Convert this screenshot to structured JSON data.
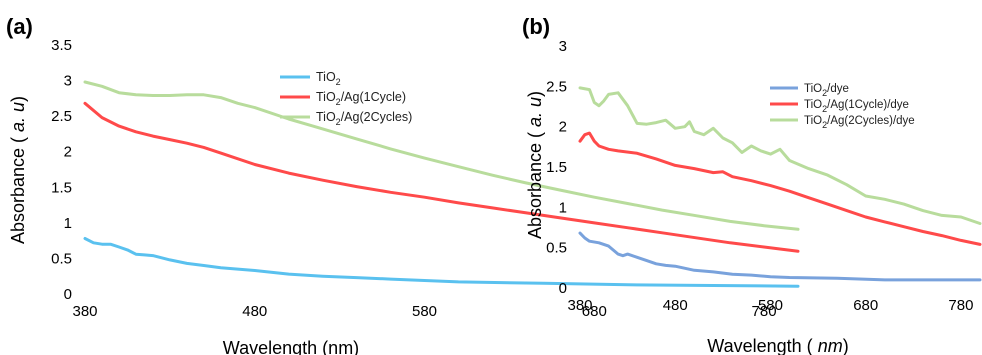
{
  "colors": {
    "blue": "#5ac1ef",
    "red": "#ff4a4a",
    "green": "#b8dc9c"
  },
  "chart_data": [
    {
      "panel_label": "(a)",
      "type": "line",
      "xlabel": "Wavelength (nm)",
      "ylabel": "Absorbance (a. u)",
      "xlim": [
        380,
        800
      ],
      "ylim": [
        0,
        3.5
      ],
      "xticks": [
        "380",
        "480",
        "580",
        "680",
        "780"
      ],
      "yticks": [
        "0",
        "0.5",
        "1",
        "1.5",
        "2",
        "2.5",
        "3",
        "3.5"
      ],
      "legend": {
        "position": "top-right"
      },
      "series": [
        {
          "name": "TiO2",
          "name_base": "TiO",
          "name_sub": "2",
          "name_rest": "",
          "color": "#5ac1ef",
          "x": [
            380,
            385,
            390,
            395,
            400,
            405,
            410,
            415,
            420,
            430,
            440,
            450,
            460,
            470,
            480,
            500,
            520,
            540,
            560,
            580,
            600,
            650,
            700,
            750,
            800
          ],
          "y": [
            0.78,
            0.72,
            0.7,
            0.7,
            0.66,
            0.62,
            0.56,
            0.55,
            0.54,
            0.48,
            0.43,
            0.4,
            0.37,
            0.35,
            0.33,
            0.28,
            0.25,
            0.23,
            0.21,
            0.19,
            0.17,
            0.15,
            0.13,
            0.12,
            0.11
          ]
        },
        {
          "name": "TiO2/Ag(1Cycle)",
          "name_base": "TiO",
          "name_sub": "2",
          "name_rest": "/Ag(1Cycle)",
          "color": "#ff4a4a",
          "x": [
            380,
            390,
            400,
            410,
            420,
            430,
            440,
            450,
            460,
            480,
            500,
            520,
            540,
            560,
            580,
            600,
            620,
            640,
            660,
            680,
            700,
            720,
            740,
            760,
            780,
            800
          ],
          "y": [
            2.68,
            2.48,
            2.36,
            2.28,
            2.22,
            2.17,
            2.12,
            2.06,
            1.98,
            1.82,
            1.7,
            1.6,
            1.51,
            1.43,
            1.36,
            1.28,
            1.21,
            1.14,
            1.07,
            1.0,
            0.93,
            0.86,
            0.79,
            0.72,
            0.66,
            0.6
          ]
        },
        {
          "name": "TiO2/Ag(2Cycles)",
          "name_base": "TiO",
          "name_sub": "2",
          "name_rest": "/Ag(2Cycles)",
          "color": "#b8dc9c",
          "x": [
            380,
            390,
            400,
            410,
            420,
            430,
            440,
            450,
            460,
            470,
            480,
            500,
            520,
            540,
            560,
            580,
            600,
            620,
            640,
            660,
            680,
            700,
            720,
            740,
            760,
            780,
            800
          ],
          "y": [
            2.98,
            2.92,
            2.83,
            2.8,
            2.79,
            2.79,
            2.8,
            2.8,
            2.76,
            2.68,
            2.62,
            2.46,
            2.32,
            2.18,
            2.04,
            1.91,
            1.79,
            1.67,
            1.56,
            1.46,
            1.36,
            1.27,
            1.18,
            1.1,
            1.02,
            0.96,
            0.91
          ]
        }
      ]
    },
    {
      "panel_label": "(b)",
      "type": "line",
      "xlabel": "Wavelength (nm)",
      "ylabel": "Absorbance (a. u)",
      "xlim": [
        380,
        800
      ],
      "ylim": [
        0,
        3
      ],
      "xticks": [
        "380",
        "480",
        "580",
        "680",
        "780"
      ],
      "yticks": [
        "0",
        "0.5",
        "1",
        "1.5",
        "2",
        "2.5",
        "3"
      ],
      "legend": {
        "position": "top-right"
      },
      "series": [
        {
          "name": "TiO2/dye",
          "name_base": "TiO",
          "name_sub": "2",
          "name_rest": "/dye",
          "color": "#79a2dc",
          "x": [
            380,
            385,
            390,
            400,
            410,
            420,
            425,
            430,
            440,
            450,
            460,
            470,
            480,
            500,
            520,
            540,
            560,
            580,
            600,
            650,
            700,
            750,
            800
          ],
          "y": [
            0.68,
            0.62,
            0.58,
            0.56,
            0.52,
            0.42,
            0.4,
            0.42,
            0.38,
            0.34,
            0.3,
            0.28,
            0.27,
            0.22,
            0.2,
            0.17,
            0.16,
            0.14,
            0.13,
            0.12,
            0.1,
            0.1,
            0.1
          ]
        },
        {
          "name": "TiO2/Ag(1Cycle)/dye",
          "name_base": "TiO",
          "name_sub": "2",
          "name_rest": "/Ag(1Cycle)/dye",
          "color": "#ff4a4a",
          "x": [
            380,
            385,
            390,
            395,
            400,
            410,
            420,
            440,
            460,
            480,
            500,
            520,
            530,
            540,
            560,
            580,
            600,
            620,
            640,
            660,
            680,
            700,
            720,
            740,
            760,
            780,
            800
          ],
          "y": [
            1.82,
            1.9,
            1.92,
            1.82,
            1.76,
            1.72,
            1.7,
            1.67,
            1.6,
            1.52,
            1.48,
            1.43,
            1.44,
            1.38,
            1.33,
            1.27,
            1.2,
            1.12,
            1.04,
            0.96,
            0.88,
            0.82,
            0.76,
            0.7,
            0.65,
            0.59,
            0.54
          ]
        },
        {
          "name": "TiO2/Ag(2Cycles)/dye",
          "name_base": "TiO",
          "name_sub": "2",
          "name_rest": "/Ag(2Cycles)/dye",
          "color": "#b8dc9c",
          "x": [
            380,
            390,
            395,
            400,
            405,
            410,
            420,
            430,
            440,
            450,
            460,
            470,
            480,
            490,
            495,
            500,
            510,
            520,
            530,
            540,
            550,
            560,
            570,
            580,
            590,
            600,
            620,
            640,
            660,
            680,
            700,
            720,
            740,
            760,
            780,
            800
          ],
          "y": [
            2.48,
            2.46,
            2.3,
            2.26,
            2.32,
            2.4,
            2.42,
            2.26,
            2.04,
            2.03,
            2.05,
            2.08,
            1.98,
            2.0,
            2.06,
            1.94,
            1.9,
            1.98,
            1.86,
            1.8,
            1.68,
            1.76,
            1.7,
            1.66,
            1.72,
            1.58,
            1.48,
            1.4,
            1.28,
            1.14,
            1.1,
            1.04,
            0.96,
            0.9,
            0.88,
            0.8
          ]
        }
      ]
    }
  ]
}
